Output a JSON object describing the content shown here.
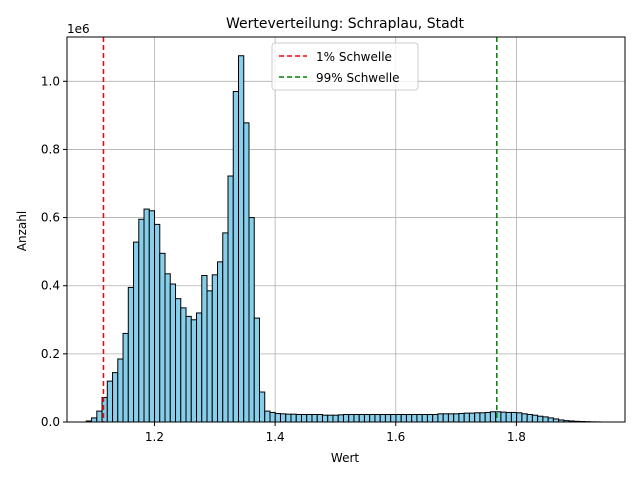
{
  "chart_data": {
    "type": "bar",
    "title": "Werteverteilung: Schraplau, Stadt",
    "xlabel": "Wert",
    "ylabel": "Anzahl",
    "y_offset_text": "1e6",
    "xlim": [
      1.055,
      1.98
    ],
    "ylim": [
      0,
      1130000
    ],
    "x_ticks": [
      1.2,
      1.4,
      1.6,
      1.8
    ],
    "x_tick_labels": [
      "1.2",
      "1.4",
      "1.6",
      "1.8"
    ],
    "y_ticks": [
      0,
      200000,
      400000,
      600000,
      800000,
      1000000
    ],
    "y_tick_labels": [
      "0.0",
      "0.2",
      "0.4",
      "0.6",
      "0.8",
      "1.0"
    ],
    "grid": true,
    "bar_color": "#87ceeb",
    "bar_edge_color": "#000000",
    "bin_width": 0.0087,
    "bin_start": 1.087,
    "values": [
      3000,
      12000,
      32000,
      72000,
      120000,
      145000,
      185000,
      260000,
      395000,
      528000,
      595000,
      625000,
      620000,
      580000,
      495000,
      435000,
      405000,
      362000,
      335000,
      310000,
      300000,
      320000,
      430000,
      385000,
      432000,
      470000,
      555000,
      722000,
      970000,
      1075000,
      878000,
      600000,
      305000,
      88000,
      32000,
      28000,
      25000,
      24000,
      23000,
      23000,
      22000,
      22000,
      22000,
      22000,
      22000,
      20000,
      20000,
      20000,
      21000,
      22000,
      22000,
      22000,
      22000,
      22000,
      22000,
      22000,
      22000,
      22000,
      22000,
      22000,
      22000,
      22000,
      22000,
      22000,
      22000,
      22000,
      22000,
      24000,
      24000,
      24000,
      24000,
      25000,
      26000,
      26000,
      27000,
      27000,
      28000,
      30000,
      30000,
      29000,
      28000,
      28000,
      27000,
      24000,
      22000,
      20000,
      17000,
      15000,
      12000,
      9000,
      6000,
      4000,
      3000,
      2000,
      1500,
      1000,
      500,
      300
    ],
    "thresholds": [
      {
        "name": "1% Schwelle",
        "value": 1.1155,
        "color": "#ff0000"
      },
      {
        "name": "99% Schwelle",
        "value": 1.7675,
        "color": "#008000"
      }
    ],
    "legend_position": "upper center"
  }
}
